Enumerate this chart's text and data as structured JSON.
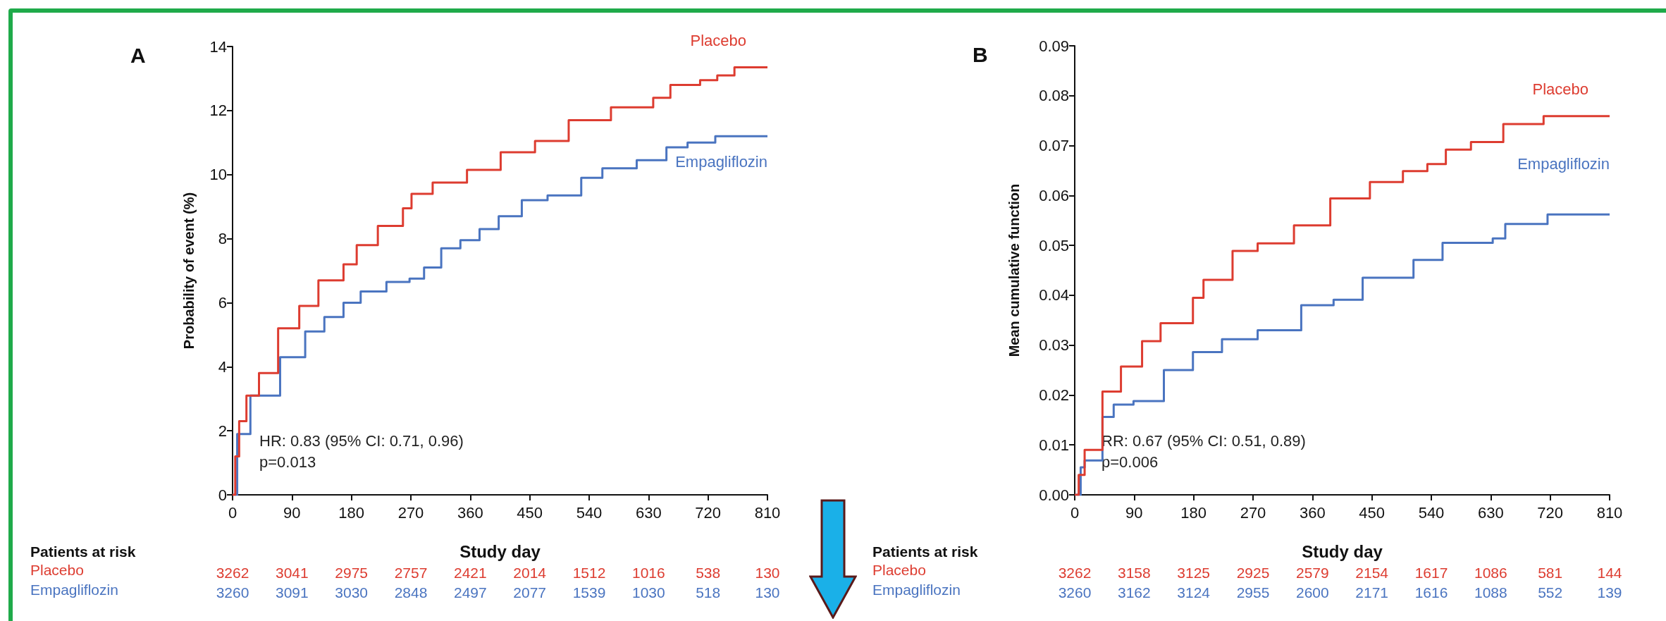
{
  "chart_data": [
    {
      "type": "step",
      "title": "A",
      "xlabel": "Study day",
      "ylabel": "Probability of event (%)",
      "legend": false,
      "grid": false,
      "xlim": [
        0,
        810
      ],
      "xticks": [
        0,
        90,
        180,
        270,
        360,
        450,
        540,
        630,
        720,
        810
      ],
      "ylim": [
        0,
        14
      ],
      "yticks": [
        0,
        2,
        4,
        6,
        8,
        10,
        12,
        14
      ],
      "series": [
        {
          "name": "Placebo",
          "color": "#dd3c30",
          "x": [
            0,
            4,
            10,
            21,
            40,
            69,
            101,
            130,
            168,
            188,
            220,
            258,
            271,
            303,
            355,
            406,
            458,
            509,
            573,
            637,
            663,
            708,
            734,
            760,
            810
          ],
          "values": [
            0,
            1.2,
            2.3,
            3.1,
            3.8,
            5.2,
            5.9,
            6.7,
            7.2,
            7.8,
            8.4,
            8.95,
            9.4,
            9.75,
            10.15,
            10.7,
            11.05,
            11.7,
            12.1,
            12.4,
            12.8,
            12.95,
            13.1,
            13.35,
            13.35
          ]
        },
        {
          "name": "Empagliflozin",
          "color": "#4a74c0",
          "x": [
            0,
            7,
            27,
            72,
            110,
            139,
            168,
            194,
            233,
            268,
            290,
            316,
            345,
            374,
            403,
            438,
            477,
            528,
            560,
            612,
            657,
            689,
            731,
            810
          ],
          "values": [
            0,
            1.9,
            3.1,
            4.3,
            5.1,
            5.55,
            6.0,
            6.35,
            6.65,
            6.75,
            7.1,
            7.7,
            7.95,
            8.3,
            8.7,
            9.2,
            9.35,
            9.9,
            10.2,
            10.45,
            10.85,
            11.0,
            11.2,
            11.2
          ]
        }
      ],
      "annotations": [
        "HR: 0.83 (95% CI: 0.71, 0.96)",
        "p=0.013",
        "Patients at risk",
        "3262",
        "3041",
        "2975",
        "2757",
        "2421",
        "2014",
        "1512",
        "1016",
        "538",
        "130",
        "3260",
        "3091",
        "3030",
        "2848",
        "2497",
        "2077",
        "1539",
        "1030",
        "518",
        "130"
      ]
    },
    {
      "type": "step",
      "title": "B",
      "xlabel": "Study day",
      "ylabel": "Mean cumulative function",
      "legend": false,
      "grid": false,
      "xlim": [
        0,
        810
      ],
      "xticks": [
        0,
        90,
        180,
        270,
        360,
        450,
        540,
        630,
        720,
        810
      ],
      "ylim": [
        0,
        0.09
      ],
      "yticks": [
        {
          "value": 0,
          "label": "0.00"
        },
        {
          "value": 0.01,
          "label": "0.01"
        },
        {
          "value": 0.02,
          "label": "0.02"
        },
        {
          "value": 0.03,
          "label": "0.03"
        },
        {
          "value": 0.04,
          "label": "0.04"
        },
        {
          "value": 0.05,
          "label": "0.05"
        },
        {
          "value": 0.06,
          "label": "0.06"
        },
        {
          "value": 0.07,
          "label": "0.07"
        },
        {
          "value": 0.08,
          "label": "0.08"
        },
        {
          "value": 0.09,
          "label": "0.09"
        }
      ],
      "series": [
        {
          "name": "Placebo",
          "color": "#dd3c30",
          "x": [
            0,
            6,
            15,
            42,
            70,
            102,
            130,
            179,
            195,
            239,
            277,
            332,
            387,
            447,
            497,
            534,
            562,
            600,
            649,
            707,
            710,
            810
          ],
          "values": [
            0,
            0.004,
            0.009,
            0.0207,
            0.0257,
            0.0308,
            0.0344,
            0.0395,
            0.0431,
            0.0489,
            0.0504,
            0.054,
            0.0594,
            0.0627,
            0.0649,
            0.0663,
            0.0692,
            0.0707,
            0.0743,
            0.0743,
            0.0759,
            0.0759
          ]
        },
        {
          "name": "Empagliflozin",
          "color": "#4a74c0",
          "x": [
            0,
            9,
            15,
            42,
            59,
            89,
            135,
            179,
            223,
            277,
            343,
            392,
            436,
            482,
            513,
            557,
            633,
            652,
            713,
            716,
            810
          ],
          "values": [
            0,
            0.0055,
            0.0069,
            0.0156,
            0.0181,
            0.0188,
            0.025,
            0.0286,
            0.0312,
            0.033,
            0.038,
            0.0391,
            0.0435,
            0.0435,
            0.0471,
            0.0505,
            0.0514,
            0.0543,
            0.0543,
            0.0562,
            0.0562
          ]
        }
      ],
      "annotations": [
        "RR: 0.67 (95% CI: 0.51, 0.89)",
        "p=0.006",
        "Patients at risk",
        "3262",
        "3158",
        "3125",
        "2925",
        "2579",
        "2154",
        "1617",
        "1086",
        "581",
        "144",
        "3260",
        "3162",
        "3124",
        "2955",
        "2600",
        "2171",
        "1616",
        "1088",
        "552",
        "139"
      ]
    }
  ]
}
